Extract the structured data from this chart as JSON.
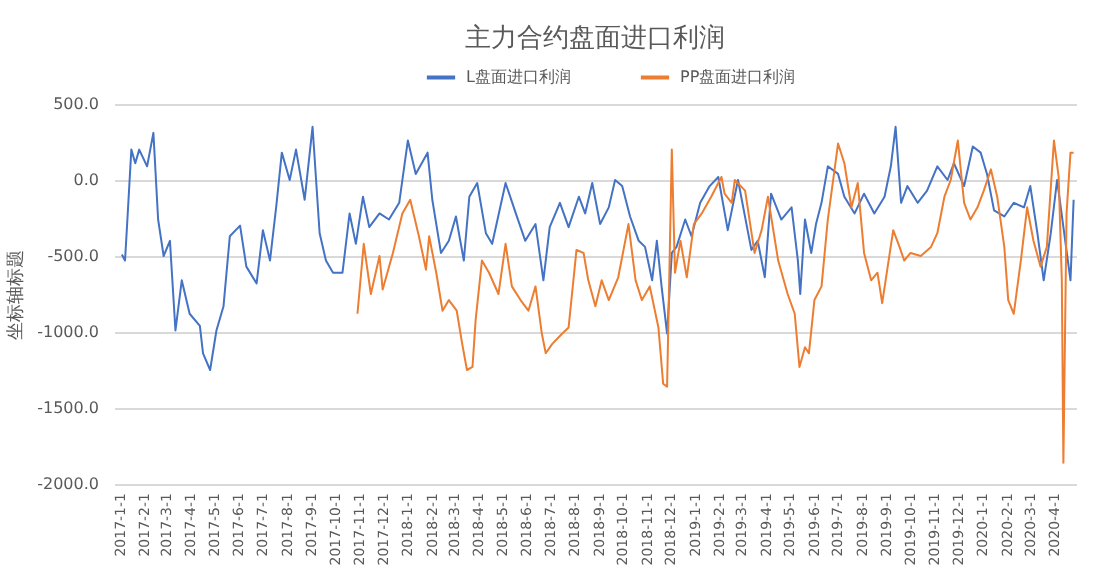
{
  "chart_data": {
    "type": "line",
    "title": "主力合约盘面进口利润",
    "ylabel": "坐标轴标题",
    "legend": "top",
    "grid": "y",
    "marker": "none",
    "line_style": "solid",
    "xlim": [
      "2016-12-25",
      "2020-04-29"
    ],
    "ylim": [
      -2000,
      500
    ],
    "yticks": [
      {
        "value": -2000,
        "label": "-2000.0"
      },
      {
        "value": -1500,
        "label": "-1500.0"
      },
      {
        "value": -1000,
        "label": "-1000.0"
      },
      {
        "value": -500,
        "label": "-500.0"
      },
      {
        "value": 0,
        "label": "0.0"
      },
      {
        "value": 500,
        "label": "500.0"
      }
    ],
    "xticks": [
      {
        "value": "2017-01-01",
        "label": "2017-1-1"
      },
      {
        "value": "2017-02-01",
        "label": "2017-2-1"
      },
      {
        "value": "2017-03-01",
        "label": "2017-3-1"
      },
      {
        "value": "2017-04-01",
        "label": "2017-4-1"
      },
      {
        "value": "2017-05-01",
        "label": "2017-5-1"
      },
      {
        "value": "2017-06-01",
        "label": "2017-6-1"
      },
      {
        "value": "2017-07-01",
        "label": "2017-7-1"
      },
      {
        "value": "2017-08-01",
        "label": "2017-8-1"
      },
      {
        "value": "2017-09-01",
        "label": "2017-9-1"
      },
      {
        "value": "2017-10-01",
        "label": "2017-10-1"
      },
      {
        "value": "2017-11-01",
        "label": "2017-11-1"
      },
      {
        "value": "2017-12-01",
        "label": "2017-12-1"
      },
      {
        "value": "2018-01-01",
        "label": "2018-1-1"
      },
      {
        "value": "2018-02-01",
        "label": "2018-2-1"
      },
      {
        "value": "2018-03-01",
        "label": "2018-3-1"
      },
      {
        "value": "2018-04-01",
        "label": "2018-4-1"
      },
      {
        "value": "2018-05-01",
        "label": "2018-5-1"
      },
      {
        "value": "2018-06-01",
        "label": "2018-6-1"
      },
      {
        "value": "2018-07-01",
        "label": "2018-7-1"
      },
      {
        "value": "2018-08-01",
        "label": "2018-8-1"
      },
      {
        "value": "2018-09-01",
        "label": "2018-9-1"
      },
      {
        "value": "2018-10-01",
        "label": "2018-10-1"
      },
      {
        "value": "2018-11-01",
        "label": "2018-11-1"
      },
      {
        "value": "2018-12-01",
        "label": "2018-12-1"
      },
      {
        "value": "2019-01-01",
        "label": "2019-1-1"
      },
      {
        "value": "2019-02-01",
        "label": "2019-2-1"
      },
      {
        "value": "2019-03-01",
        "label": "2019-3-1"
      },
      {
        "value": "2019-04-01",
        "label": "2019-4-1"
      },
      {
        "value": "2019-05-01",
        "label": "2019-5-1"
      },
      {
        "value": "2019-06-01",
        "label": "2019-6-1"
      },
      {
        "value": "2019-07-01",
        "label": "2019-7-1"
      },
      {
        "value": "2019-08-01",
        "label": "2019-8-1"
      },
      {
        "value": "2019-09-01",
        "label": "2019-9-1"
      },
      {
        "value": "2019-10-01",
        "label": "2019-10-1"
      },
      {
        "value": "2019-11-01",
        "label": "2019-11-1"
      },
      {
        "value": "2019-12-01",
        "label": "2019-12-1"
      },
      {
        "value": "2020-01-01",
        "label": "2020-1-1"
      },
      {
        "value": "2020-02-01",
        "label": "2020-2-1"
      },
      {
        "value": "2020-03-01",
        "label": "2020-3-1"
      },
      {
        "value": "2020-04-01",
        "label": "2020-4-1"
      }
    ],
    "series": [
      {
        "name": "L盘面进口利润",
        "color": "#4472c4",
        "x": [
          "2017-01-04",
          "2017-01-08",
          "2017-01-11",
          "2017-01-16",
          "2017-01-21",
          "2017-01-26",
          "2017-02-05",
          "2017-02-13",
          "2017-02-19",
          "2017-02-26",
          "2017-03-06",
          "2017-03-13",
          "2017-03-21",
          "2017-03-31",
          "2017-04-13",
          "2017-04-17",
          "2017-04-26",
          "2017-05-04",
          "2017-05-13",
          "2017-05-21",
          "2017-06-03",
          "2017-06-11",
          "2017-06-24",
          "2017-07-02",
          "2017-07-11",
          "2017-07-19",
          "2017-07-26",
          "2017-08-05",
          "2017-08-13",
          "2017-08-24",
          "2017-09-03",
          "2017-09-12",
          "2017-09-20",
          "2017-09-29",
          "2017-10-11",
          "2017-10-20",
          "2017-10-28",
          "2017-11-06",
          "2017-11-14",
          "2017-11-27",
          "2017-12-09",
          "2017-12-22",
          "2018-01-02",
          "2018-01-12",
          "2018-01-27",
          "2018-02-02",
          "2018-02-13",
          "2018-02-23",
          "2018-03-04",
          "2018-03-14",
          "2018-03-21",
          "2018-03-31",
          "2018-04-11",
          "2018-04-19",
          "2018-05-06",
          "2018-05-19",
          "2018-05-31",
          "2018-06-13",
          "2018-06-23",
          "2018-07-01",
          "2018-07-14",
          "2018-07-25",
          "2018-08-07",
          "2018-08-15",
          "2018-08-24",
          "2018-09-03",
          "2018-09-14",
          "2018-09-22",
          "2018-10-01",
          "2018-10-11",
          "2018-10-22",
          "2018-10-30",
          "2018-11-08",
          "2018-11-14",
          "2018-11-20",
          "2018-11-27",
          "2018-12-03",
          "2018-12-09",
          "2018-12-20",
          "2018-12-28",
          "2019-01-08",
          "2019-01-20",
          "2019-01-31",
          "2019-02-12",
          "2019-02-25",
          "2019-03-14",
          "2019-03-22",
          "2019-03-31",
          "2019-04-08",
          "2019-04-21",
          "2019-05-04",
          "2019-05-12",
          "2019-05-15",
          "2019-05-21",
          "2019-05-29",
          "2019-06-04",
          "2019-06-11",
          "2019-06-19",
          "2019-07-02",
          "2019-07-10",
          "2019-07-23",
          "2019-08-04",
          "2019-08-17",
          "2019-08-30",
          "2019-09-07",
          "2019-09-13",
          "2019-09-20",
          "2019-09-28",
          "2019-10-11",
          "2019-10-23",
          "2019-11-05",
          "2019-11-18",
          "2019-11-26",
          "2019-12-09",
          "2019-12-20",
          "2019-12-30",
          "2020-01-07",
          "2020-01-16",
          "2020-01-29",
          "2020-02-10",
          "2020-02-23",
          "2020-03-02",
          "2020-03-11",
          "2020-03-19",
          "2020-03-28",
          "2020-04-05",
          "2020-04-13",
          "2020-04-22",
          "2020-04-26"
        ],
        "values": [
          -490,
          -530,
          -260,
          200,
          110,
          200,
          90,
          310,
          -260,
          -500,
          -400,
          -990,
          -660,
          -880,
          -960,
          -1140,
          -1250,
          -990,
          -830,
          -370,
          -300,
          -570,
          -680,
          -330,
          -530,
          -170,
          180,
          0,
          200,
          -130,
          350,
          -350,
          -530,
          -610,
          -610,
          -220,
          -420,
          -110,
          -310,
          -220,
          -260,
          -150,
          260,
          40,
          180,
          -130,
          -480,
          -400,
          -240,
          -530,
          -110,
          -20,
          -350,
          -420,
          -20,
          -220,
          -400,
          -290,
          -660,
          -310,
          -150,
          -310,
          -110,
          -220,
          -20,
          -290,
          -180,
          0,
          -40,
          -240,
          -400,
          -440,
          -660,
          -400,
          -700,
          -1010,
          -480,
          -440,
          -260,
          -370,
          -150,
          -40,
          20,
          -330,
          0,
          -460,
          -400,
          -640,
          -90,
          -260,
          -180,
          -530,
          -750,
          -260,
          -480,
          -290,
          -150,
          90,
          40,
          -110,
          -220,
          -90,
          -220,
          -110,
          90,
          350,
          -150,
          -40,
          -150,
          -70,
          90,
          0,
          110,
          -40,
          220,
          180,
          40,
          -200,
          -240,
          -150,
          -180,
          -40,
          -350,
          -660,
          -350,
          0,
          -310,
          -660,
          -130
        ]
      },
      {
        "name": "PP盘面进口利润",
        "color": "#ed7d31",
        "x": [
          "2017-10-30",
          "2017-11-07",
          "2017-11-16",
          "2017-11-27",
          "2017-12-01",
          "2017-12-14",
          "2017-12-26",
          "2018-01-05",
          "2018-01-16",
          "2018-01-25",
          "2018-01-29",
          "2018-02-07",
          "2018-02-15",
          "2018-02-23",
          "2018-03-05",
          "2018-03-12",
          "2018-03-18",
          "2018-03-25",
          "2018-03-29",
          "2018-04-06",
          "2018-04-15",
          "2018-04-27",
          "2018-05-06",
          "2018-05-14",
          "2018-05-25",
          "2018-06-04",
          "2018-06-13",
          "2018-06-21",
          "2018-06-26",
          "2018-07-04",
          "2018-07-17",
          "2018-07-25",
          "2018-08-04",
          "2018-08-13",
          "2018-08-19",
          "2018-08-28",
          "2018-09-05",
          "2018-09-14",
          "2018-09-26",
          "2018-10-09",
          "2018-10-18",
          "2018-10-26",
          "2018-11-05",
          "2018-11-16",
          "2018-11-22",
          "2018-11-27",
          "2018-12-03",
          "2018-12-07",
          "2018-12-14",
          "2018-12-22",
          "2018-12-31",
          "2019-01-10",
          "2019-01-22",
          "2019-02-04",
          "2019-02-08",
          "2019-02-17",
          "2019-02-21",
          "2019-03-06",
          "2019-03-18",
          "2019-03-27",
          "2019-04-04",
          "2019-04-17",
          "2019-04-29",
          "2019-05-08",
          "2019-05-14",
          "2019-05-21",
          "2019-05-26",
          "2019-06-02",
          "2019-06-11",
          "2019-06-19",
          "2019-07-02",
          "2019-07-10",
          "2019-07-19",
          "2019-07-27",
          "2019-08-04",
          "2019-08-13",
          "2019-08-21",
          "2019-08-27",
          "2019-09-03",
          "2019-09-10",
          "2019-09-18",
          "2019-09-24",
          "2019-10-02",
          "2019-10-15",
          "2019-10-28",
          "2019-11-05",
          "2019-11-14",
          "2019-11-22",
          "2019-12-01",
          "2019-12-09",
          "2019-12-17",
          "2019-12-26",
          "2020-01-03",
          "2020-01-12",
          "2020-01-20",
          "2020-01-29",
          "2020-02-03",
          "2020-02-10",
          "2020-02-19",
          "2020-02-27",
          "2020-03-06",
          "2020-03-15",
          "2020-03-23",
          "2020-04-01",
          "2020-04-07",
          "2020-04-11",
          "2020-04-13",
          "2020-04-17",
          "2020-04-22",
          "2020-04-26"
        ],
        "values": [
          -880,
          -420,
          -750,
          -500,
          -720,
          -480,
          -220,
          -130,
          -370,
          -590,
          -370,
          -610,
          -860,
          -790,
          -860,
          -1080,
          -1250,
          -1230,
          -920,
          -530,
          -610,
          -750,
          -420,
          -700,
          -790,
          -860,
          -700,
          -1010,
          -1140,
          -1080,
          -1010,
          -970,
          -460,
          -480,
          -660,
          -830,
          -660,
          -790,
          -640,
          -290,
          -660,
          -790,
          -700,
          -970,
          -1340,
          -1360,
          200,
          -610,
          -400,
          -640,
          -290,
          -220,
          -110,
          20,
          -90,
          -150,
          0,
          -70,
          -480,
          -330,
          -110,
          -530,
          -750,
          -880,
          -1230,
          -1100,
          -1140,
          -790,
          -700,
          -260,
          240,
          110,
          -180,
          -20,
          -480,
          -660,
          -610,
          -810,
          -570,
          -330,
          -440,
          -530,
          -480,
          -500,
          -440,
          -350,
          -110,
          0,
          260,
          -150,
          -260,
          -180,
          -70,
          70,
          -110,
          -440,
          -790,
          -880,
          -530,
          -180,
          -400,
          -570,
          -440,
          260,
          20,
          -660,
          -1860,
          -220,
          180,
          180
        ]
      }
    ]
  }
}
